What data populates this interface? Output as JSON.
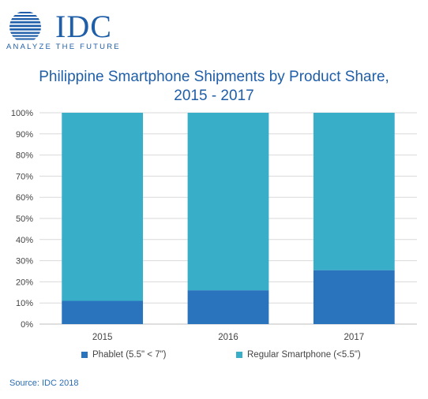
{
  "logo": {
    "word": "IDC",
    "tagline": "ANALYZE THE FUTURE"
  },
  "title_line1": "Philippine Smartphone Shipments by Product Share,",
  "title_line2": "2015 - 2017",
  "source": "Source: IDC 2018",
  "colors": {
    "phablet": "#2a74bd",
    "regular": "#38aec8",
    "brand": "#1f5ea8"
  },
  "chart_data": {
    "type": "bar",
    "stacked": true,
    "categories": [
      "2015",
      "2016",
      "2017"
    ],
    "series": [
      {
        "name": "Phablet (5.5\" < 7\")",
        "values": [
          11,
          16,
          25.5
        ]
      },
      {
        "name": "Regular Smartphone (<5.5\")",
        "values": [
          89,
          84,
          74.5
        ]
      }
    ],
    "yticks": [
      "0%",
      "10%",
      "20%",
      "30%",
      "40%",
      "50%",
      "60%",
      "70%",
      "80%",
      "90%",
      "100%"
    ],
    "ylim": [
      0,
      100
    ],
    "grid": true,
    "legend_position": "bottom"
  }
}
